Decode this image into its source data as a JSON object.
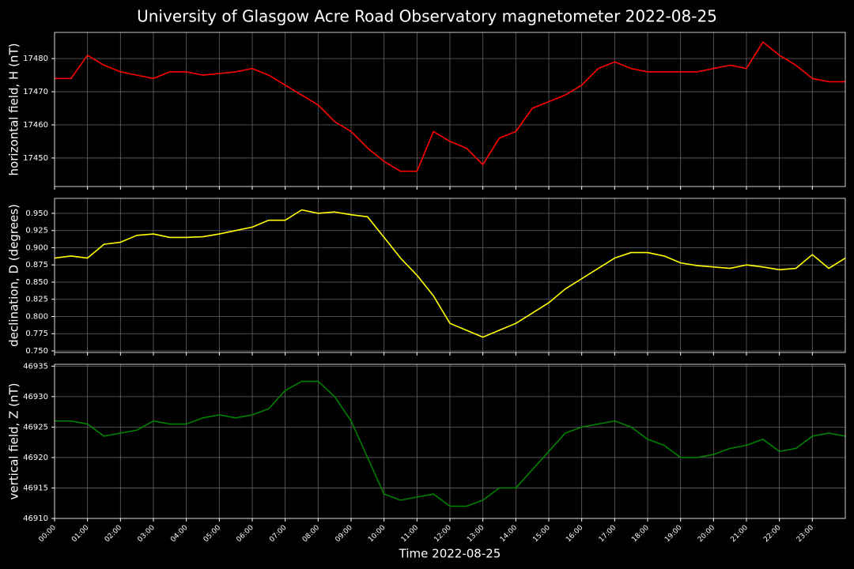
{
  "chart_data": [
    {
      "type": "line",
      "title": "University of Glasgow Acre Road Observatory magnetometer 2022-08-25",
      "ylabel": "horizontal field, H (nT)",
      "grid": true,
      "x": [
        "00:00",
        "00:30",
        "01:00",
        "01:30",
        "02:00",
        "02:30",
        "03:00",
        "03:30",
        "04:00",
        "04:30",
        "05:00",
        "05:30",
        "06:00",
        "06:30",
        "07:00",
        "07:30",
        "08:00",
        "08:30",
        "09:00",
        "09:30",
        "10:00",
        "10:30",
        "11:00",
        "11:30",
        "12:00",
        "12:30",
        "13:00",
        "13:30",
        "14:00",
        "14:30",
        "15:00",
        "15:30",
        "16:00",
        "16:30",
        "17:00",
        "17:30",
        "18:00",
        "18:30",
        "19:00",
        "19:30",
        "20:00",
        "20:30",
        "21:00",
        "21:30",
        "22:00",
        "22:30",
        "23:00",
        "23:30",
        "24:00"
      ],
      "xlim": [
        "00:00",
        "24:00"
      ],
      "series": [
        {
          "name": "H",
          "color": "#ff0000",
          "values": [
            17474,
            17474,
            17481,
            17478,
            17476,
            17475,
            17474,
            17476,
            17476,
            17475,
            17475.5,
            17476,
            17477,
            17475,
            17472,
            17469,
            17466,
            17461,
            17458,
            17453,
            17449,
            17446,
            17446,
            17458,
            17455,
            17453,
            17448,
            17456,
            17458,
            17465,
            17467,
            17469,
            17472,
            17477,
            17479,
            17477,
            17476,
            17476,
            17476,
            17476,
            17477,
            17478,
            17477,
            17485,
            17481,
            17478,
            17474,
            17473,
            17473
          ]
        }
      ],
      "ylim": [
        17441.4,
        17487.9
      ],
      "yticks": [
        17450,
        17460,
        17470,
        17480
      ]
    },
    {
      "type": "line",
      "ylabel": "declination, D (degrees)",
      "grid": true,
      "x": [
        "00:00",
        "00:30",
        "01:00",
        "01:30",
        "02:00",
        "02:30",
        "03:00",
        "03:30",
        "04:00",
        "04:30",
        "05:00",
        "05:30",
        "06:00",
        "06:30",
        "07:00",
        "07:30",
        "08:00",
        "08:30",
        "09:00",
        "09:30",
        "10:00",
        "10:30",
        "11:00",
        "11:30",
        "12:00",
        "12:30",
        "13:00",
        "13:30",
        "14:00",
        "14:30",
        "15:00",
        "15:30",
        "16:00",
        "16:30",
        "17:00",
        "17:30",
        "18:00",
        "18:30",
        "19:00",
        "19:30",
        "20:00",
        "20:30",
        "21:00",
        "21:30",
        "22:00",
        "22:30",
        "23:00",
        "23:30",
        "24:00"
      ],
      "xlim": [
        "00:00",
        "24:00"
      ],
      "series": [
        {
          "name": "D",
          "color": "#ffff00",
          "values": [
            0.885,
            0.888,
            0.885,
            0.905,
            0.908,
            0.918,
            0.92,
            0.915,
            0.915,
            0.916,
            0.92,
            0.925,
            0.93,
            0.94,
            0.94,
            0.955,
            0.95,
            0.952,
            0.948,
            0.945,
            0.915,
            0.885,
            0.86,
            0.83,
            0.79,
            0.78,
            0.77,
            0.78,
            0.79,
            0.805,
            0.82,
            0.84,
            0.855,
            0.87,
            0.885,
            0.893,
            0.893,
            0.888,
            0.878,
            0.874,
            0.872,
            0.87,
            0.875,
            0.872,
            0.868,
            0.87,
            0.89,
            0.87,
            0.885
          ]
        }
      ],
      "ylim": [
        0.7477,
        0.9718
      ],
      "yticks": [
        {
          "value": 0.75,
          "label": "0.750"
        },
        0.775,
        {
          "value": 0.8,
          "label": "0.800"
        },
        0.825,
        {
          "value": 0.85,
          "label": "0.850"
        },
        0.875,
        {
          "value": 0.9,
          "label": "0.900"
        },
        0.925,
        {
          "value": 0.95,
          "label": "0.950"
        }
      ]
    },
    {
      "type": "line",
      "ylabel": "vertical field, Z (nT)",
      "xlabel": "Time 2022-08-25",
      "grid": true,
      "x": [
        "00:00",
        "00:30",
        "01:00",
        "01:30",
        "02:00",
        "02:30",
        "03:00",
        "03:30",
        "04:00",
        "04:30",
        "05:00",
        "05:30",
        "06:00",
        "06:30",
        "07:00",
        "07:30",
        "08:00",
        "08:30",
        "09:00",
        "09:30",
        "10:00",
        "10:30",
        "11:00",
        "11:30",
        "12:00",
        "12:30",
        "13:00",
        "13:30",
        "14:00",
        "14:30",
        "15:00",
        "15:30",
        "16:00",
        "16:30",
        "17:00",
        "17:30",
        "18:00",
        "18:30",
        "19:00",
        "19:30",
        "20:00",
        "20:30",
        "21:00",
        "21:30",
        "22:00",
        "22:30",
        "23:00",
        "23:30",
        "24:00"
      ],
      "xlim": [
        "00:00",
        "24:00"
      ],
      "xticks": [
        "00:00",
        "01:00",
        "02:00",
        "03:00",
        "04:00",
        "05:00",
        "06:00",
        "07:00",
        "08:00",
        "09:00",
        "10:00",
        "11:00",
        "12:00",
        "13:00",
        "14:00",
        "15:00",
        "16:00",
        "17:00",
        "18:00",
        "19:00",
        "20:00",
        "21:00",
        "22:00",
        "23:00"
      ],
      "series": [
        {
          "name": "Z",
          "color": "#008000",
          "values": [
            46926,
            46926,
            46925.5,
            46923.5,
            46924,
            46924.5,
            46926,
            46925.5,
            46925.5,
            46926.5,
            46927,
            46926.5,
            46927,
            46928,
            46931,
            46932.5,
            46932.5,
            46930,
            46926,
            46920,
            46914,
            46913,
            46913.5,
            46914,
            46912,
            46912,
            46913,
            46915,
            46915,
            46918,
            46921,
            46924,
            46925,
            46925.5,
            46926,
            46925,
            46923,
            46922,
            46920,
            46920,
            46920.5,
            46921.5,
            46922,
            46923,
            46921,
            46921.5,
            46923.5,
            46924,
            46923.5
          ]
        }
      ],
      "ylim": [
        46910,
        46935.3
      ],
      "yticks": [
        46910,
        46915,
        46920,
        46925,
        46930,
        46935
      ]
    }
  ]
}
